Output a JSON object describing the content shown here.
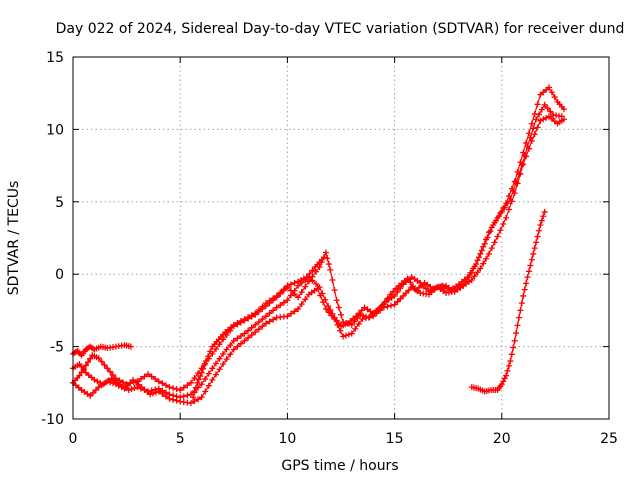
{
  "chart_data": {
    "type": "scatter",
    "title": "Day 022 of 2024, Sidereal Day-to-day VTEC variation (SDTVAR) for receiver dund",
    "xlabel": "GPS time / hours",
    "ylabel": "SDTVAR / TECUs",
    "xlim": [
      0,
      25
    ],
    "ylim": [
      -10,
      15
    ],
    "xticks": [
      0,
      5,
      10,
      15,
      20,
      25
    ],
    "yticks": [
      -10,
      -5,
      0,
      5,
      10,
      15
    ],
    "x_tick_labels": [
      "0",
      "5",
      "10",
      "15",
      "20",
      "25"
    ],
    "y_tick_labels": [
      "-10",
      "-5",
      "0",
      "5",
      "10",
      "15"
    ],
    "grid": true,
    "legend": "none",
    "marker": "plus",
    "color": "#ff0000",
    "series": [
      {
        "x": [
          0.0,
          0.2,
          0.4,
          0.6,
          0.8,
          1.0,
          1.3,
          1.6,
          2.0,
          2.4,
          2.7
        ],
        "y": [
          -5.5,
          -5.3,
          -5.6,
          -5.2,
          -5.0,
          -5.2,
          -5.0,
          -5.1,
          -5.0,
          -4.9,
          -5.0
        ]
      },
      {
        "x": [
          0.0,
          0.3,
          0.6,
          0.9,
          1.2,
          1.6,
          2.0,
          2.5,
          3.0,
          3.5,
          4.0,
          4.5,
          5.0,
          5.5,
          6.0,
          6.5,
          7.0,
          7.5,
          8.0,
          8.5,
          9.0,
          9.5,
          10.0,
          10.5,
          11.0,
          11.5,
          11.8,
          12.0,
          12.3,
          12.6,
          13.0,
          13.4,
          13.8,
          14.2,
          14.6,
          15.0,
          15.4,
          15.8,
          16.2,
          16.6,
          17.0,
          17.4,
          17.8,
          18.2,
          18.6,
          19.0,
          19.4,
          19.8,
          20.2,
          20.6,
          21.0,
          21.4,
          21.8,
          22.2,
          22.6,
          22.9
        ],
        "y": [
          -7.5,
          -7.0,
          -6.3,
          -5.6,
          -5.8,
          -6.5,
          -7.2,
          -7.6,
          -7.4,
          -6.9,
          -7.4,
          -7.8,
          -8.0,
          -7.5,
          -6.5,
          -5.5,
          -4.5,
          -3.6,
          -3.2,
          -2.8,
          -2.2,
          -1.6,
          -0.9,
          -1.6,
          -0.5,
          0.5,
          1.5,
          0.3,
          -1.8,
          -3.3,
          -3.5,
          -2.8,
          -3.0,
          -2.5,
          -1.9,
          -1.5,
          -0.7,
          -0.2,
          -0.6,
          -1.2,
          -0.9,
          -0.8,
          -1.2,
          -0.8,
          0.1,
          1.4,
          2.9,
          3.9,
          4.9,
          6.4,
          8.4,
          10.4,
          12.4,
          12.9,
          11.9,
          11.4
        ]
      },
      {
        "x": [
          0.0,
          0.3,
          0.6,
          1.0,
          1.4,
          1.8,
          2.2,
          2.6,
          3.0,
          3.5,
          4.0,
          4.5,
          5.0,
          5.5,
          6.0,
          6.5,
          7.0,
          7.5,
          8.0,
          8.5,
          9.0,
          9.5,
          10.0,
          10.5,
          11.0,
          11.5,
          11.9,
          12.2,
          12.5,
          12.8,
          13.2,
          13.6,
          14.0,
          14.4,
          14.8,
          15.2,
          15.6,
          16.0,
          16.4,
          16.8,
          17.2,
          17.6,
          18.0,
          18.4,
          18.8,
          19.2,
          19.6,
          20.0,
          20.4,
          20.8,
          21.2,
          21.6,
          22.0,
          22.4,
          22.8
        ],
        "y": [
          -6.5,
          -6.2,
          -6.8,
          -7.3,
          -7.6,
          -7.2,
          -7.6,
          -8.0,
          -7.8,
          -8.1,
          -7.9,
          -8.3,
          -8.5,
          -8.3,
          -7.6,
          -6.5,
          -5.5,
          -4.6,
          -4.1,
          -3.5,
          -2.9,
          -2.3,
          -1.8,
          -0.8,
          -0.2,
          -0.9,
          -2.2,
          -3.0,
          -3.6,
          -3.4,
          -2.9,
          -2.3,
          -2.7,
          -2.2,
          -1.4,
          -0.8,
          -0.3,
          -1.1,
          -0.6,
          -1.0,
          -0.8,
          -1.1,
          -0.7,
          -0.2,
          0.7,
          2.1,
          3.4,
          4.3,
          5.2,
          6.9,
          8.8,
          10.7,
          11.7,
          11.0,
          10.9
        ]
      },
      {
        "x": [
          0.0,
          0.4,
          0.8,
          1.2,
          1.6,
          2.0,
          2.4,
          2.8,
          3.2,
          3.6,
          4.0,
          4.5,
          5.0,
          5.5,
          6.0,
          6.5,
          7.0,
          7.5,
          8.0,
          8.5,
          9.0,
          9.5,
          10.0,
          10.5,
          11.0,
          11.4,
          11.8,
          12.2,
          12.6,
          13.0,
          13.5,
          14.0,
          14.5,
          15.0,
          15.4,
          15.8,
          16.2,
          16.6,
          17.0,
          17.4,
          17.8,
          18.2,
          18.6,
          19.0,
          19.4,
          19.8,
          20.2,
          20.6,
          21.0,
          21.4,
          21.8,
          22.2,
          22.6,
          22.9
        ],
        "y": [
          -7.5,
          -8.0,
          -8.4,
          -7.8,
          -7.4,
          -7.6,
          -7.9,
          -7.3,
          -7.8,
          -8.3,
          -8.1,
          -8.6,
          -8.8,
          -8.9,
          -8.5,
          -7.3,
          -6.2,
          -5.2,
          -4.6,
          -4.0,
          -3.4,
          -3.0,
          -2.9,
          -2.4,
          -1.4,
          -1.0,
          -2.4,
          -3.1,
          -4.3,
          -4.1,
          -3.1,
          -2.9,
          -2.3,
          -2.1,
          -1.5,
          -0.9,
          -1.3,
          -1.4,
          -0.9,
          -1.3,
          -1.2,
          -0.8,
          -0.4,
          0.4,
          1.4,
          2.6,
          3.9,
          5.6,
          7.6,
          9.2,
          10.6,
          10.9,
          10.4,
          10.7
        ]
      },
      {
        "x": [
          5.6,
          5.8,
          6.0,
          6.2,
          6.5,
          6.8,
          7.1,
          7.5,
          8.0,
          8.5,
          9.0,
          9.5,
          10.0,
          10.5,
          10.9,
          11.3,
          11.6
        ],
        "y": [
          -8.5,
          -7.5,
          -6.8,
          -6.0,
          -5.0,
          -4.5,
          -4.0,
          -3.5,
          -3.1,
          -2.7,
          -2.0,
          -1.5,
          -0.8,
          -0.5,
          -0.2,
          0.5,
          1.0
        ]
      },
      {
        "x": [
          18.6,
          18.9,
          19.2,
          19.5,
          19.8,
          20.0,
          20.2,
          20.4,
          20.6,
          20.8,
          21.0,
          21.2,
          21.4,
          21.6,
          21.8,
          22.0
        ],
        "y": [
          -7.8,
          -7.9,
          -8.1,
          -8.0,
          -8.0,
          -7.6,
          -7.0,
          -6.0,
          -4.6,
          -3.0,
          -1.5,
          -0.2,
          1.0,
          2.2,
          3.4,
          4.3
        ]
      }
    ]
  }
}
